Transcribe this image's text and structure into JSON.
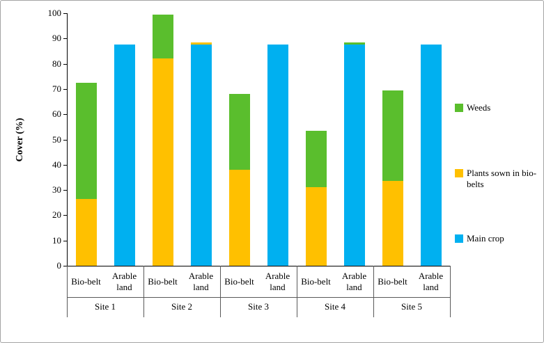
{
  "chart_data": {
    "type": "bar",
    "stacked": true,
    "title": "",
    "xlabel": "",
    "ylabel": "Cover (%)",
    "ylim": [
      0,
      100
    ],
    "yticks": [
      0,
      10,
      20,
      30,
      40,
      50,
      60,
      70,
      80,
      90,
      100
    ],
    "grid": false,
    "legend_position": "right",
    "groups": [
      "Site 1",
      "Site 2",
      "Site 3",
      "Site 4",
      "Site 5"
    ],
    "bar_labels": [
      "Bio-belt",
      "Arable land"
    ],
    "series": [
      {
        "name": "Main crop",
        "color": "#00B0F0",
        "values": [
          [
            0,
            87.5
          ],
          [
            0,
            87.5
          ],
          [
            0,
            87.5
          ],
          [
            0,
            87.5
          ],
          [
            0,
            87.5
          ]
        ]
      },
      {
        "name": "Plants sown in bio-belts",
        "color": "#FFC000",
        "values": [
          [
            26.5,
            0
          ],
          [
            82,
            1
          ],
          [
            38,
            0
          ],
          [
            31,
            0
          ],
          [
            33.5,
            0
          ]
        ]
      },
      {
        "name": "Weeds",
        "color": "#5ABE2D",
        "values": [
          [
            46,
            0
          ],
          [
            17.5,
            0
          ],
          [
            30,
            0
          ],
          [
            22.5,
            1
          ],
          [
            36,
            0
          ]
        ]
      }
    ],
    "legend": [
      "Weeds",
      "Plants sown in bio-belts",
      "Main crop"
    ],
    "axis_color": "#000000",
    "separator_color": "#595959"
  }
}
